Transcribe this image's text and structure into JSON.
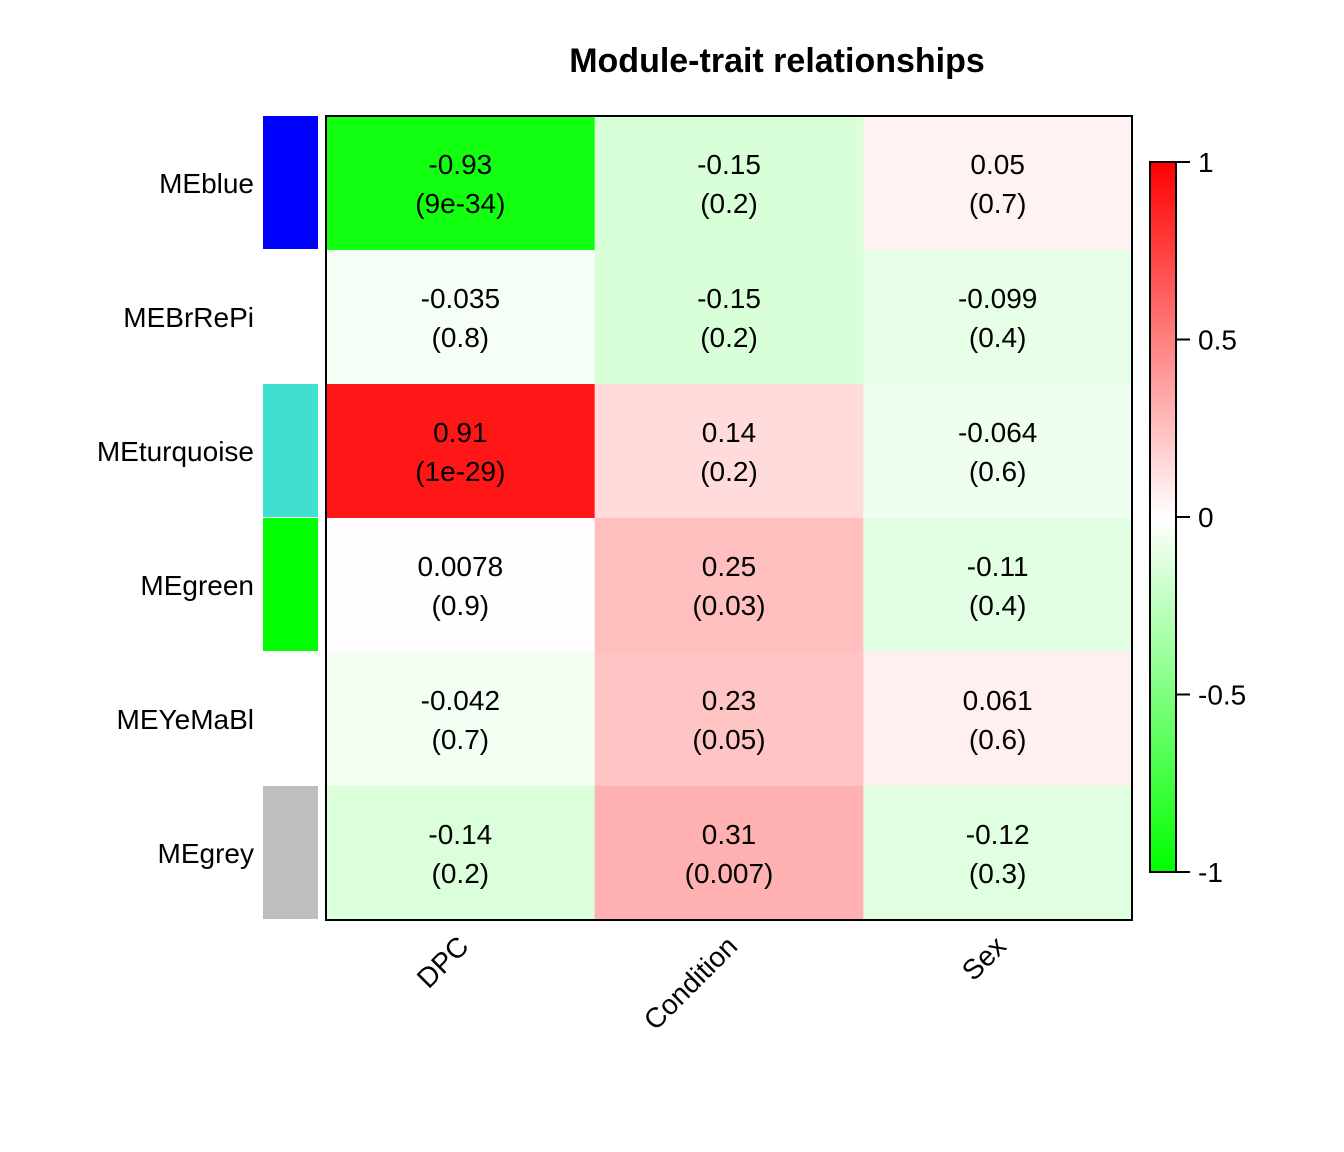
{
  "chart_data": {
    "type": "heatmap",
    "title": "Module-trait relationships",
    "xlabel": "",
    "ylabel": "",
    "columns": [
      "DPC",
      "Condition",
      "Sex"
    ],
    "rows": [
      {
        "label": "MEblue",
        "module_color": "#0000FF",
        "cells": [
          {
            "r": -0.93,
            "value": "-0.93",
            "p": "(9e-34)"
          },
          {
            "r": -0.15,
            "value": "-0.15",
            "p": "(0.2)"
          },
          {
            "r": 0.05,
            "value": "0.05",
            "p": "(0.7)"
          }
        ]
      },
      {
        "label": "MEBrRePi",
        "module_color": null,
        "cells": [
          {
            "r": -0.035,
            "value": "-0.035",
            "p": "(0.8)"
          },
          {
            "r": -0.15,
            "value": "-0.15",
            "p": "(0.2)"
          },
          {
            "r": -0.099,
            "value": "-0.099",
            "p": "(0.4)"
          }
        ]
      },
      {
        "label": "MEturquoise",
        "module_color": "#40E0D0",
        "cells": [
          {
            "r": 0.91,
            "value": "0.91",
            "p": "(1e-29)"
          },
          {
            "r": 0.14,
            "value": "0.14",
            "p": "(0.2)"
          },
          {
            "r": -0.064,
            "value": "-0.064",
            "p": "(0.6)"
          }
        ]
      },
      {
        "label": "MEgreen",
        "module_color": "#00FF00",
        "cells": [
          {
            "r": 0.0078,
            "value": "0.0078",
            "p": "(0.9)"
          },
          {
            "r": 0.25,
            "value": "0.25",
            "p": "(0.03)"
          },
          {
            "r": -0.11,
            "value": "-0.11",
            "p": "(0.4)"
          }
        ]
      },
      {
        "label": "MEYeMaBl",
        "module_color": null,
        "cells": [
          {
            "r": -0.042,
            "value": "-0.042",
            "p": "(0.7)"
          },
          {
            "r": 0.23,
            "value": "0.23",
            "p": "(0.05)"
          },
          {
            "r": 0.061,
            "value": "0.061",
            "p": "(0.6)"
          }
        ]
      },
      {
        "label": "MEgrey",
        "module_color": "#BEBEBE",
        "cells": [
          {
            "r": -0.14,
            "value": "-0.14",
            "p": "(0.2)"
          },
          {
            "r": 0.31,
            "value": "0.31",
            "p": "(0.007)"
          },
          {
            "r": -0.12,
            "value": "-0.12",
            "p": "(0.3)"
          }
        ]
      }
    ],
    "color_scale": {
      "min": -1,
      "max": 1,
      "low_color": "#00FF00",
      "mid_color": "#FFFFFF",
      "high_color": "#FF0000",
      "ticks": [
        "1",
        "0.5",
        "0",
        "-0.5",
        "-1"
      ]
    },
    "legend_position": "right",
    "grid": false
  }
}
